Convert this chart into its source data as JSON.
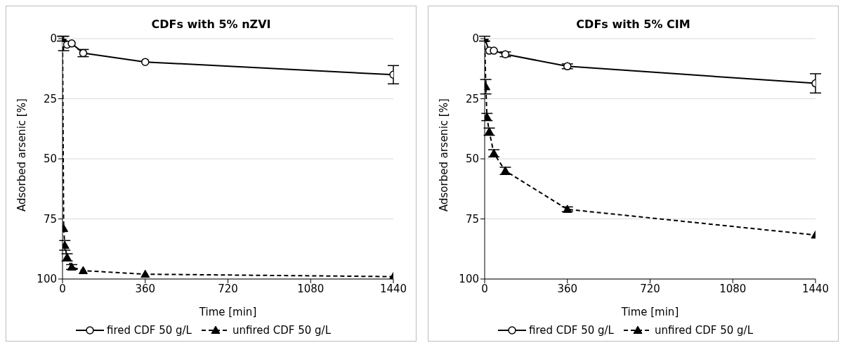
{
  "chart_data": [
    {
      "type": "line",
      "title": "CDFs with 5% nZVI",
      "xlabel": "Time [min]",
      "ylabel": "Adsorbed arsenic [%]",
      "x": [
        0,
        5,
        10,
        20,
        40,
        90,
        360,
        1440
      ],
      "xlim": [
        0,
        1440
      ],
      "xticks": [
        0,
        360,
        720,
        1080,
        1440
      ],
      "ylim": [
        100,
        0
      ],
      "yticks": [
        0,
        25,
        50,
        75,
        100
      ],
      "grid": "y",
      "legend": "bottom",
      "series": [
        {
          "name": "fired CDF 50 g/L",
          "color": "#000000",
          "marker": "circle",
          "line_style": "solid",
          "x": [
            0,
            5,
            20,
            40,
            90,
            360,
            1440
          ],
          "values": [
            0,
            2,
            2.5,
            2,
            6,
            9.7,
            15
          ],
          "errors": [
            1,
            3,
            null,
            null,
            1.5,
            null,
            3.8
          ]
        },
        {
          "name": "unfired CDF 50 g/L",
          "color": "#000000",
          "marker": "triangle",
          "line_style": "dashed",
          "values": [
            0,
            79,
            86,
            91,
            95,
            96.5,
            98,
            99
          ],
          "errors": [
            null,
            null,
            2,
            1.5,
            1,
            null,
            null,
            null
          ]
        }
      ]
    },
    {
      "type": "line",
      "title": "CDFs with 5% CIM",
      "xlabel": "Time [min]",
      "ylabel": "Adsorbed arsenic [%]",
      "x": [
        0,
        5,
        10,
        20,
        40,
        90,
        360,
        1440
      ],
      "xlim": [
        0,
        1440
      ],
      "xticks": [
        0,
        360,
        720,
        1080,
        1440
      ],
      "ylim": [
        100,
        0
      ],
      "yticks": [
        0,
        25,
        50,
        75,
        100
      ],
      "grid": "y",
      "legend": "bottom",
      "series": [
        {
          "name": "fired CDF 50 g/L",
          "color": "#000000",
          "marker": "circle",
          "line_style": "solid",
          "x": [
            0,
            20,
            40,
            90,
            360,
            1440
          ],
          "values": [
            0,
            5,
            5,
            6.5,
            11.5,
            18.6
          ],
          "errors": [
            1,
            null,
            null,
            1,
            1,
            4
          ]
        },
        {
          "name": "unfired CDF 50 g/L",
          "color": "#000000",
          "marker": "triangle",
          "line_style": "dashed",
          "values": [
            0,
            20,
            32.6,
            38.7,
            47.7,
            55,
            71,
            81.7
          ],
          "errors": [
            null,
            3,
            1.5,
            1.5,
            1.5,
            1.5,
            1,
            null
          ]
        }
      ]
    }
  ]
}
